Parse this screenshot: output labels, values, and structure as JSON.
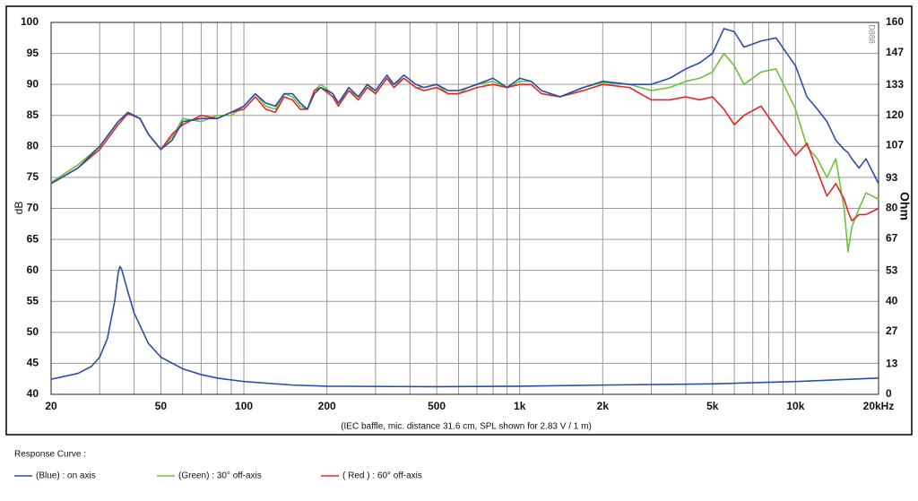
{
  "chart_data": {
    "type": "line",
    "caption": "(IEC baffle, mic. distance 31.6 cm, SPL shown for 2.83 V / 1 m)",
    "ylabel": "dB",
    "y2label": "Ohm",
    "watermark": "D888",
    "legend_title": "Response Curve :",
    "xscale": "log",
    "grid": true,
    "xlim": [
      20,
      20000
    ],
    "xticks": [
      20,
      50,
      100,
      200,
      500,
      {
        "value": 1000,
        "label": "1k"
      },
      {
        "value": 2000,
        "label": "2k"
      },
      {
        "value": 5000,
        "label": "5k"
      },
      {
        "value": 10000,
        "label": "10k"
      },
      {
        "value": 20000,
        "label": "20kHz"
      }
    ],
    "x_minor_ticks": [
      30,
      40,
      60,
      70,
      80,
      90,
      300,
      400,
      600,
      700,
      800,
      900,
      3000,
      4000,
      6000,
      7000,
      8000,
      9000
    ],
    "ylim": [
      40,
      100
    ],
    "yticks": [
      40,
      45,
      50,
      55,
      60,
      65,
      70,
      75,
      80,
      85,
      90,
      95,
      100
    ],
    "y2lim": [
      0,
      160
    ],
    "y2ticks": [
      0,
      13,
      27,
      40,
      53,
      67,
      80,
      93,
      107,
      120,
      133,
      147,
      160
    ],
    "x": [
      20,
      25,
      30,
      35,
      38,
      42,
      45,
      50,
      55,
      60,
      70,
      80,
      90,
      100,
      110,
      120,
      130,
      140,
      150,
      160,
      170,
      180,
      190,
      210,
      220,
      240,
      260,
      280,
      300,
      330,
      350,
      380,
      420,
      450,
      500,
      550,
      600,
      650,
      700,
      800,
      900,
      1000,
      1100,
      1200,
      1400,
      1700,
      2000,
      2500,
      3000,
      3500,
      4000,
      4500,
      5000,
      5500,
      6000,
      6500,
      7500,
      8500,
      10000,
      11000,
      12000,
      13000,
      14000,
      15000,
      15500,
      16000,
      17000,
      18000,
      20000
    ],
    "series": [
      {
        "name": "(Green) : 30° off-axis",
        "color": "#6cc23a",
        "values": [
          74.2,
          77,
          80,
          84,
          85.3,
          84.5,
          82,
          79.5,
          81.5,
          84.5,
          84,
          85,
          85,
          86.5,
          88.5,
          86.5,
          86,
          88.5,
          88,
          86.5,
          86,
          89,
          90,
          88.5,
          87,
          89,
          88,
          90,
          88.5,
          91,
          90,
          91,
          89.5,
          89.5,
          90,
          88.5,
          88.5,
          89.5,
          90,
          90.5,
          89.5,
          90.5,
          90.5,
          89,
          88,
          89.5,
          90.3,
          90,
          89,
          89.5,
          90.5,
          91,
          92,
          95,
          93,
          90,
          92,
          92.5,
          86,
          80,
          78,
          75,
          78,
          70,
          63,
          67,
          70,
          72.5,
          71.5
        ]
      },
      {
        "name": "( Red ) : 60° off-axis",
        "color": "#e3262a",
        "values": [
          74,
          76.5,
          79.5,
          83.5,
          85.3,
          84.5,
          82,
          79.5,
          82,
          83.5,
          85,
          84.5,
          85.5,
          86,
          88,
          86,
          85.5,
          88,
          87.5,
          86,
          86,
          89,
          89.5,
          88,
          86.5,
          89,
          87.5,
          89.5,
          88.5,
          91,
          89.5,
          91,
          89.5,
          89,
          89.5,
          88.5,
          88.5,
          89,
          89.5,
          90,
          89.5,
          90,
          90,
          88.5,
          88,
          89,
          90,
          89.5,
          87.5,
          87.5,
          88,
          87.5,
          88,
          86,
          83.5,
          85,
          86.5,
          83,
          78.5,
          80.5,
          76,
          72,
          74,
          71.5,
          69.5,
          68,
          69,
          69,
          70
        ]
      },
      {
        "name": "(Blue)  : on axis",
        "color": "#2b4ea6",
        "values": [
          74,
          76.5,
          80,
          84,
          85.5,
          84.5,
          82,
          79.5,
          81,
          84,
          84.5,
          84.5,
          85.5,
          86.5,
          88.5,
          87,
          86.5,
          88.5,
          88.5,
          87,
          86,
          88.5,
          89.5,
          88.5,
          87,
          89.5,
          88,
          90,
          89,
          91.5,
          90,
          91.5,
          90,
          89.5,
          90,
          89,
          89,
          89.5,
          90,
          91,
          89.5,
          91,
          90.5,
          89,
          88,
          89.5,
          90.5,
          90,
          90,
          91,
          92.5,
          93.5,
          95,
          99,
          98.5,
          96,
          97,
          97.5,
          93,
          88,
          86,
          84,
          81,
          79.5,
          79,
          78,
          76.5,
          78,
          74
        ]
      },
      {
        "color": "#2b4ea6",
        "axis": "y2",
        "x": [
          20,
          25,
          28,
          30,
          32,
          34,
          35,
          35.5,
          36,
          38,
          40,
          45,
          50,
          60,
          70,
          80,
          100,
          150,
          200,
          500,
          1000,
          2000,
          5000,
          10000,
          20000
        ],
        "values": [
          6.5,
          9,
          12,
          16,
          24,
          40,
          52,
          55,
          54,
          44,
          35,
          22,
          16,
          11,
          8.5,
          7,
          5.5,
          4,
          3.5,
          3.3,
          3.5,
          4,
          4.5,
          5.5,
          7
        ]
      }
    ]
  }
}
